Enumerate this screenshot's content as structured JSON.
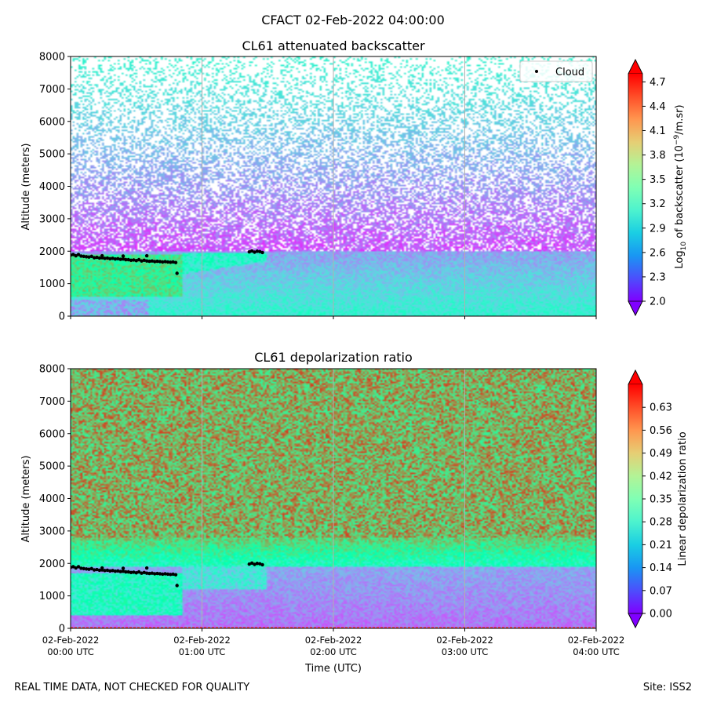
{
  "figure": {
    "title": "CFACT 02-Feb-2022 04:00:00",
    "footer_left": "REAL TIME DATA, NOT CHECKED FOR QUALITY",
    "footer_right": "Site: ISS2"
  },
  "chart_data": [
    {
      "type": "heatmap",
      "title": "CL61 attenuated backscatter",
      "xlabel": "",
      "ylabel": "Altitude (meters)",
      "x_start": "02-Feb-2022 00:00 UTC",
      "x_end": "02-Feb-2022 04:00 UTC",
      "xlim_hours": [
        0,
        4
      ],
      "ylim": [
        0,
        8000
      ],
      "yticks": [
        0,
        1000,
        2000,
        3000,
        4000,
        5000,
        6000,
        7000,
        8000
      ],
      "grid_x": true,
      "colormap": "rainbow",
      "colorbar": {
        "label": "Log10 of backscatter (10^-9/m.sr)",
        "label_main": "Log",
        "label_sub": "10",
        "label_mid": " of backscatter (10",
        "label_sup": "−9",
        "label_end": "/m.sr)",
        "range": [
          2.0,
          4.8
        ],
        "ticks": [
          "2.0",
          "2.3",
          "2.6",
          "2.9",
          "3.2",
          "3.5",
          "3.8",
          "4.1",
          "4.4",
          "4.7"
        ],
        "extend": "both"
      },
      "legend": {
        "entries": [
          "Cloud"
        ],
        "placement": "top-right"
      },
      "description_features": {
        "aerosol_layer_top_m": 2000,
        "high_backscatter_below_cloud_until_h": 0.85
      }
    },
    {
      "type": "heatmap",
      "title": "CL61 depolarization ratio",
      "xlabel": "Time (UTC)",
      "ylabel": "Altitude (meters)",
      "xlim_hours": [
        0,
        4
      ],
      "ylim": [
        0,
        8000
      ],
      "yticks": [
        0,
        1000,
        2000,
        3000,
        4000,
        5000,
        6000,
        7000,
        8000
      ],
      "grid_x": true,
      "colormap": "rainbow",
      "colorbar": {
        "label": "Linear depolarization ratio",
        "range": [
          0.0,
          0.7
        ],
        "ticks": [
          "0.00",
          "0.07",
          "0.14",
          "0.21",
          "0.28",
          "0.35",
          "0.42",
          "0.49",
          "0.56",
          "0.63"
        ],
        "extend": "both"
      }
    }
  ],
  "x_axis": {
    "tick_hours": [
      0,
      1,
      2,
      3,
      4
    ],
    "tick_labels_line1": [
      "02-Feb-2022",
      "02-Feb-2022",
      "02-Feb-2022",
      "02-Feb-2022",
      "02-Feb-2022"
    ],
    "tick_labels_line2": [
      "00:00 UTC",
      "01:00 UTC",
      "02:00 UTC",
      "03:00 UTC",
      "04:00 UTC"
    ]
  },
  "cloud_base_points": [
    {
      "t": 0.0,
      "alt": 1880
    },
    {
      "t": 0.02,
      "alt": 1900
    },
    {
      "t": 0.04,
      "alt": 1860
    },
    {
      "t": 0.06,
      "alt": 1900
    },
    {
      "t": 0.08,
      "alt": 1850
    },
    {
      "t": 0.1,
      "alt": 1840
    },
    {
      "t": 0.12,
      "alt": 1830
    },
    {
      "t": 0.14,
      "alt": 1820
    },
    {
      "t": 0.16,
      "alt": 1840
    },
    {
      "t": 0.18,
      "alt": 1800
    },
    {
      "t": 0.2,
      "alt": 1810
    },
    {
      "t": 0.22,
      "alt": 1790
    },
    {
      "t": 0.24,
      "alt": 1800
    },
    {
      "t": 0.26,
      "alt": 1780
    },
    {
      "t": 0.28,
      "alt": 1790
    },
    {
      "t": 0.3,
      "alt": 1770
    },
    {
      "t": 0.32,
      "alt": 1780
    },
    {
      "t": 0.34,
      "alt": 1760
    },
    {
      "t": 0.36,
      "alt": 1770
    },
    {
      "t": 0.38,
      "alt": 1750
    },
    {
      "t": 0.4,
      "alt": 1760
    },
    {
      "t": 0.42,
      "alt": 1740
    },
    {
      "t": 0.44,
      "alt": 1740
    },
    {
      "t": 0.46,
      "alt": 1720
    },
    {
      "t": 0.48,
      "alt": 1730
    },
    {
      "t": 0.5,
      "alt": 1710
    },
    {
      "t": 0.52,
      "alt": 1740
    },
    {
      "t": 0.54,
      "alt": 1700
    },
    {
      "t": 0.56,
      "alt": 1720
    },
    {
      "t": 0.58,
      "alt": 1700
    },
    {
      "t": 0.6,
      "alt": 1690
    },
    {
      "t": 0.62,
      "alt": 1700
    },
    {
      "t": 0.64,
      "alt": 1680
    },
    {
      "t": 0.66,
      "alt": 1690
    },
    {
      "t": 0.68,
      "alt": 1680
    },
    {
      "t": 0.7,
      "alt": 1670
    },
    {
      "t": 0.72,
      "alt": 1680
    },
    {
      "t": 0.74,
      "alt": 1670
    },
    {
      "t": 0.76,
      "alt": 1660
    },
    {
      "t": 0.78,
      "alt": 1670
    },
    {
      "t": 0.8,
      "alt": 1650
    },
    {
      "t": 0.58,
      "alt": 1860
    },
    {
      "t": 0.4,
      "alt": 1850
    },
    {
      "t": 0.24,
      "alt": 1860
    },
    {
      "t": 0.81,
      "alt": 1320
    },
    {
      "t": 1.36,
      "alt": 1980
    },
    {
      "t": 1.38,
      "alt": 2010
    },
    {
      "t": 1.4,
      "alt": 1970
    },
    {
      "t": 1.42,
      "alt": 2000
    },
    {
      "t": 1.44,
      "alt": 1990
    },
    {
      "t": 1.46,
      "alt": 1960
    }
  ]
}
